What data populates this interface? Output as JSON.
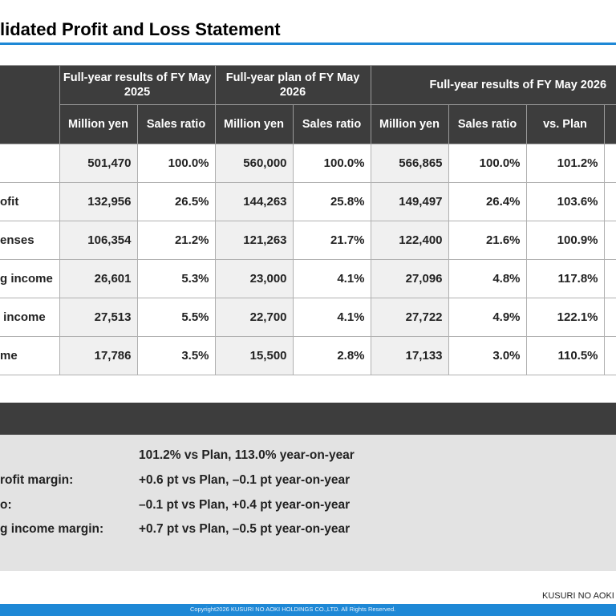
{
  "title": "lidated Profit and Loss Statement",
  "table": {
    "groups": [
      "Full-year results of FY May 2025",
      "Full-year plan of FY May 2026",
      "Full-year results of FY May 2026"
    ],
    "subheaders": [
      "Million yen",
      "Sales ratio",
      "Million yen",
      "Sales ratio",
      "Million yen",
      "Sales ratio",
      "vs. Plan"
    ],
    "rows": [
      {
        "label": "",
        "cells": [
          "501,470",
          "100.0%",
          "560,000",
          "100.0%",
          "566,865",
          "100.0%",
          "101.2%"
        ]
      },
      {
        "label": "ofit",
        "cells": [
          "132,956",
          "26.5%",
          "144,263",
          "25.8%",
          "149,497",
          "26.4%",
          "103.6%"
        ]
      },
      {
        "label": "enses",
        "cells": [
          "106,354",
          "21.2%",
          "121,263",
          "21.7%",
          "122,400",
          "21.6%",
          "100.9%"
        ]
      },
      {
        "label": "g income",
        "cells": [
          "26,601",
          "5.3%",
          "23,000",
          "4.1%",
          "27,096",
          "4.8%",
          "117.8%"
        ]
      },
      {
        "label": " income",
        "cells": [
          "27,513",
          "5.5%",
          "22,700",
          "4.1%",
          "27,722",
          "4.9%",
          "122.1%"
        ]
      },
      {
        "label": "me",
        "cells": [
          "17,786",
          "3.5%",
          "15,500",
          "2.8%",
          "17,133",
          "3.0%",
          "110.5%"
        ]
      }
    ]
  },
  "summary": [
    {
      "label": "",
      "value": "101.2% vs Plan, 113.0% year-on-year"
    },
    {
      "label": "rofit margin:",
      "value": "+0.6 pt vs Plan, –0.1 pt year-on-year"
    },
    {
      "label": "o:",
      "value": "–0.1 pt vs Plan, +0.4 pt year-on-year"
    },
    {
      "label": "g income margin:",
      "value": "+0.7 pt vs Plan, –0.5 pt year-on-year"
    }
  ],
  "footer": {
    "logo": "KUSURI NO AOKI HO",
    "copyright": "Copyright2026 KUSURI NO AOKI HOLDINGS CO.,LTD. All Rights Reserved."
  },
  "colors": {
    "accent": "#1e88d6",
    "header_bg": "#3d3d3d",
    "summary_bg": "#e3e3e3"
  }
}
